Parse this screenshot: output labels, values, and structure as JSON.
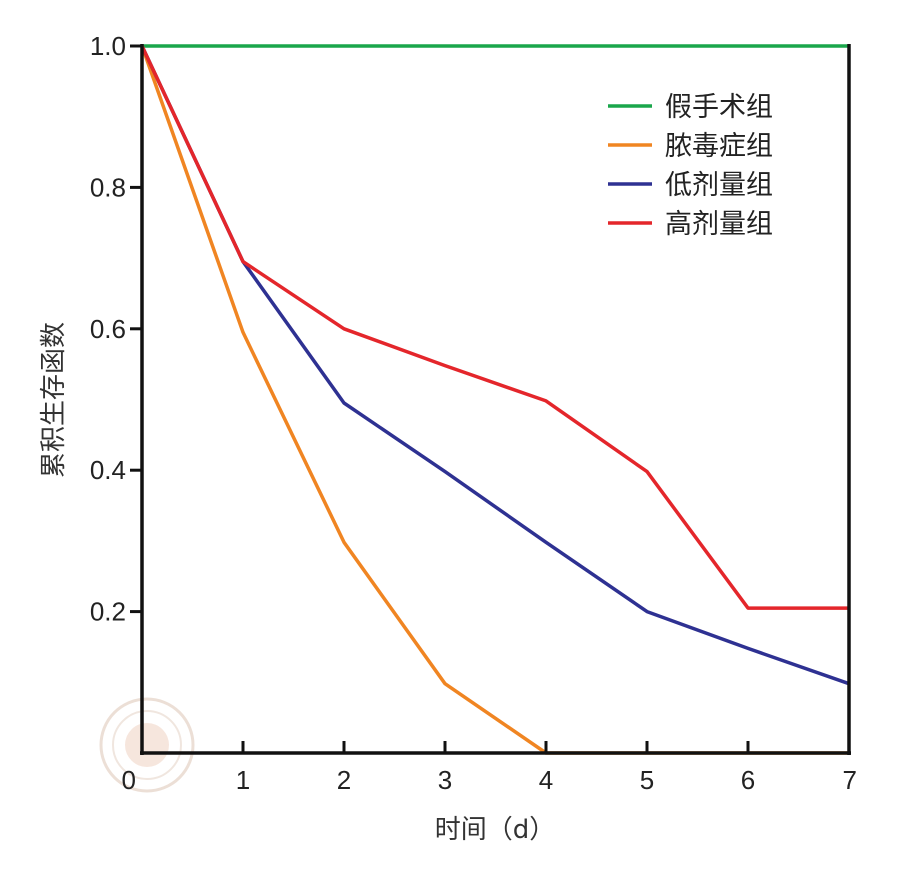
{
  "chart_data": {
    "type": "line",
    "title": "",
    "xlabel": "时间（d）",
    "ylabel": "累积生存函数",
    "x": [
      0,
      1,
      2,
      3,
      4,
      5,
      6,
      7
    ],
    "xlim": [
      0,
      7
    ],
    "ylim": [
      0,
      1.0
    ],
    "x_ticks": [
      "0",
      "1",
      "2",
      "3",
      "4",
      "5",
      "6",
      "7"
    ],
    "y_ticks": [
      {
        "value": 0.2,
        "label": "0.2"
      },
      {
        "value": 0.4,
        "label": "0.4"
      },
      {
        "value": 0.6,
        "label": "0.6"
      },
      {
        "value": 0.8,
        "label": "0.8"
      },
      {
        "value": 1.0,
        "label": "1.0"
      }
    ],
    "grid": false,
    "legend_position": "top-right",
    "series": [
      {
        "name": "假手术组",
        "color": "#1aa64b",
        "values": [
          1.0,
          1.0,
          1.0,
          1.0,
          1.0,
          1.0,
          1.0,
          1.0
        ]
      },
      {
        "name": "脓毒症组",
        "color": "#f08522",
        "values": [
          1.0,
          0.595,
          0.298,
          0.098,
          0.0,
          0.0,
          0.0,
          0.0
        ]
      },
      {
        "name": "低剂量组",
        "color": "#2e3192",
        "values": [
          1.0,
          0.695,
          0.495,
          0.398,
          0.298,
          0.2,
          0.148,
          0.098
        ]
      },
      {
        "name": "高剂量组",
        "color": "#e4262b",
        "values": [
          1.0,
          0.695,
          0.6,
          0.548,
          0.498,
          0.398,
          0.205,
          0.205
        ]
      }
    ]
  }
}
